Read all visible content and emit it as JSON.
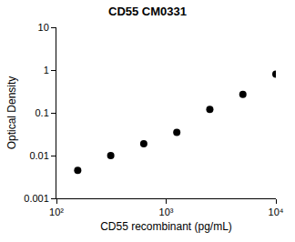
{
  "chart_data": {
    "type": "scatter",
    "title": "CD55 CM0331",
    "x_label": "CD55 recombinant (pg/mL)",
    "y_label": "Optical Density",
    "x": [
      156.25,
      312.5,
      625,
      1250,
      2500,
      5000,
      10000
    ],
    "values": [
      0.0045,
      0.01,
      0.019,
      0.035,
      0.12,
      0.27,
      0.8
    ],
    "color": "#000000",
    "marker": "circle",
    "log": true,
    "grid": false,
    "xlim": [
      100,
      10000
    ],
    "xticks": [
      {
        "value": 100,
        "label": "10²"
      },
      {
        "value": 1000,
        "label": "10³"
      },
      {
        "value": 10000,
        "label": "10⁴"
      }
    ],
    "ylim": [
      0.001,
      10
    ],
    "yticks": [
      0.001,
      0.01,
      0.1,
      1,
      10
    ]
  }
}
